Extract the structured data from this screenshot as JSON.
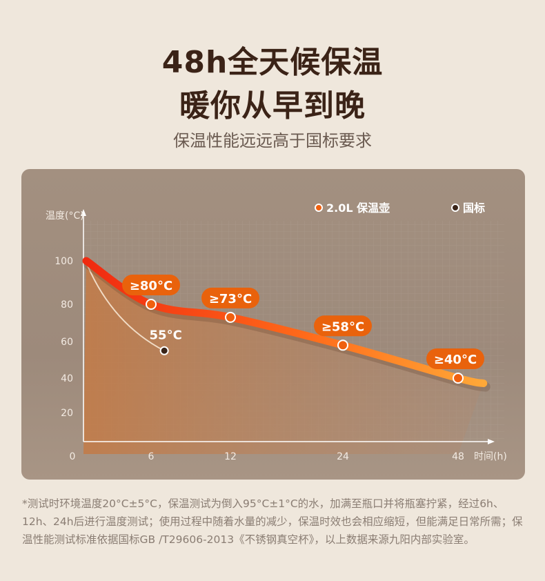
{
  "header": {
    "title_line1": "48h全天候保温",
    "title_line2": "暖你从早到晚",
    "subtitle": "保温性能远远高于国标要求"
  },
  "chart_data": {
    "type": "line",
    "ylabel": "温度(°C)",
    "xlabel": "时间(h)",
    "x_ticks": [
      "0",
      "6",
      "12",
      "24",
      "48"
    ],
    "y_ticks": [
      "100",
      "80",
      "60",
      "40",
      "20"
    ],
    "legend_placement": "top-right",
    "series": [
      {
        "name": "2.0L 保温壶",
        "color": "#ff5a14",
        "points": [
          {
            "x": 0,
            "y": 100
          },
          {
            "x": 6,
            "y": 80
          },
          {
            "x": 12,
            "y": 73
          },
          {
            "x": 24,
            "y": 58
          },
          {
            "x": 48,
            "y": 40
          }
        ],
        "labels": [
          "≥80°C",
          "≥73°C",
          "≥58°C",
          "≥40°C"
        ]
      },
      {
        "name": "国标",
        "color": "#3a2418",
        "points": [
          {
            "x": 0,
            "y": 100
          },
          {
            "x": 7,
            "y": 55
          }
        ],
        "labels": [
          "55°C"
        ]
      }
    ]
  },
  "footnote": "*测试时环境温度20°C±5°C，保温测试为倒入95°C±1°C的水，加满至瓶口并将瓶塞拧紧，经过6h、12h、24h后进行温度测试；使用过程中随着水量的减少，保温时效也会相应缩短，但能满足日常所需；保温性能测试标准依据国标GB /T29606-2013《不锈钢真空杯》，以上数据来源九阳内部实验室。"
}
